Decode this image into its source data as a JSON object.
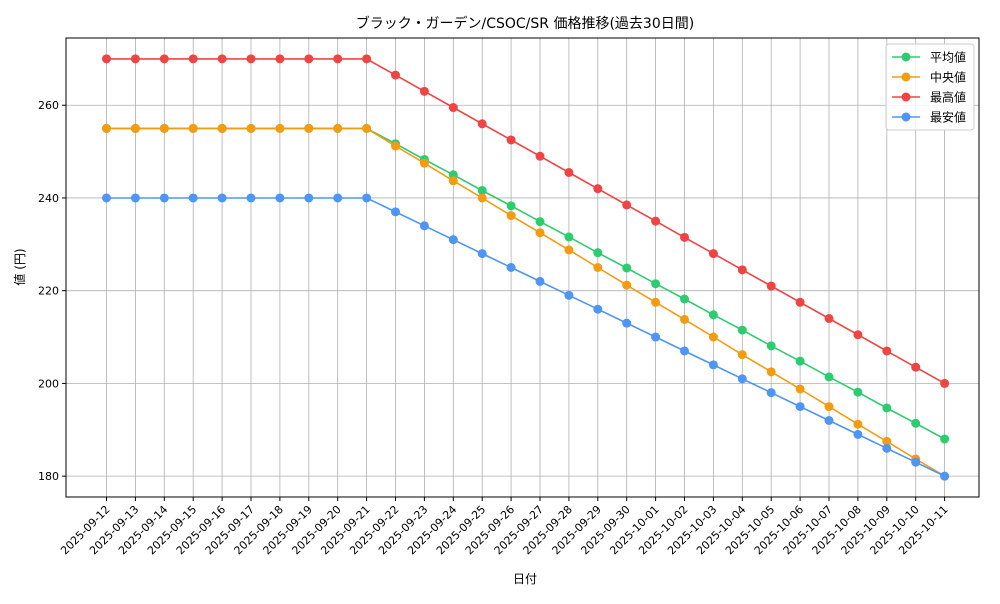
{
  "chart_data": {
    "type": "line",
    "title": "ブラック・ガーデン/CSOC/SR 価格推移(過去30日間)",
    "xlabel": "日付",
    "ylabel": "値 (円)",
    "ylim": [
      175.5,
      274.5
    ],
    "yticks": [
      180,
      200,
      220,
      240,
      260
    ],
    "grid": true,
    "legend_position": "top-right",
    "categories": [
      "2025-09-12",
      "2025-09-13",
      "2025-09-14",
      "2025-09-15",
      "2025-09-16",
      "2025-09-17",
      "2025-09-18",
      "2025-09-19",
      "2025-09-20",
      "2025-09-21",
      "2025-09-22",
      "2025-09-23",
      "2025-09-24",
      "2025-09-25",
      "2025-09-26",
      "2025-09-27",
      "2025-09-28",
      "2025-09-29",
      "2025-09-30",
      "2025-10-01",
      "2025-10-02",
      "2025-10-03",
      "2025-10-04",
      "2025-10-05",
      "2025-10-06",
      "2025-10-07",
      "2025-10-08",
      "2025-10-09",
      "2025-10-10",
      "2025-10-11"
    ],
    "series": [
      {
        "name": "平均値",
        "color": "#2ecc71",
        "values": [
          255,
          255,
          255,
          255,
          255,
          255,
          255,
          255,
          255,
          255,
          251.7,
          248.3,
          245,
          241.6,
          238.3,
          234.9,
          231.6,
          228.2,
          224.9,
          221.5,
          218.2,
          214.8,
          211.5,
          208.1,
          204.8,
          201.4,
          198.1,
          194.7,
          191.4,
          188
        ]
      },
      {
        "name": "中央値",
        "color": "#f39c12",
        "values": [
          255,
          255,
          255,
          255,
          255,
          255,
          255,
          255,
          255,
          255,
          251.2,
          247.5,
          243.7,
          240,
          236.2,
          232.5,
          228.8,
          225,
          221.2,
          217.5,
          213.8,
          210,
          206.2,
          202.5,
          198.8,
          195,
          191.2,
          187.5,
          183.7,
          180
        ]
      },
      {
        "name": "最高値",
        "color": "#ef4444",
        "values": [
          270,
          270,
          270,
          270,
          270,
          270,
          270,
          270,
          270,
          270,
          266.5,
          263,
          259.5,
          256,
          252.5,
          249,
          245.5,
          242,
          238.5,
          235,
          231.5,
          228,
          224.5,
          221,
          217.5,
          214,
          210.5,
          207,
          203.5,
          200
        ]
      },
      {
        "name": "最安値",
        "color": "#4e95f5",
        "values": [
          240,
          240,
          240,
          240,
          240,
          240,
          240,
          240,
          240,
          240,
          237,
          234,
          231,
          228,
          225,
          222,
          219,
          216,
          213,
          210,
          207,
          204,
          201,
          198,
          195,
          192,
          189,
          186,
          183,
          180
        ]
      }
    ]
  }
}
